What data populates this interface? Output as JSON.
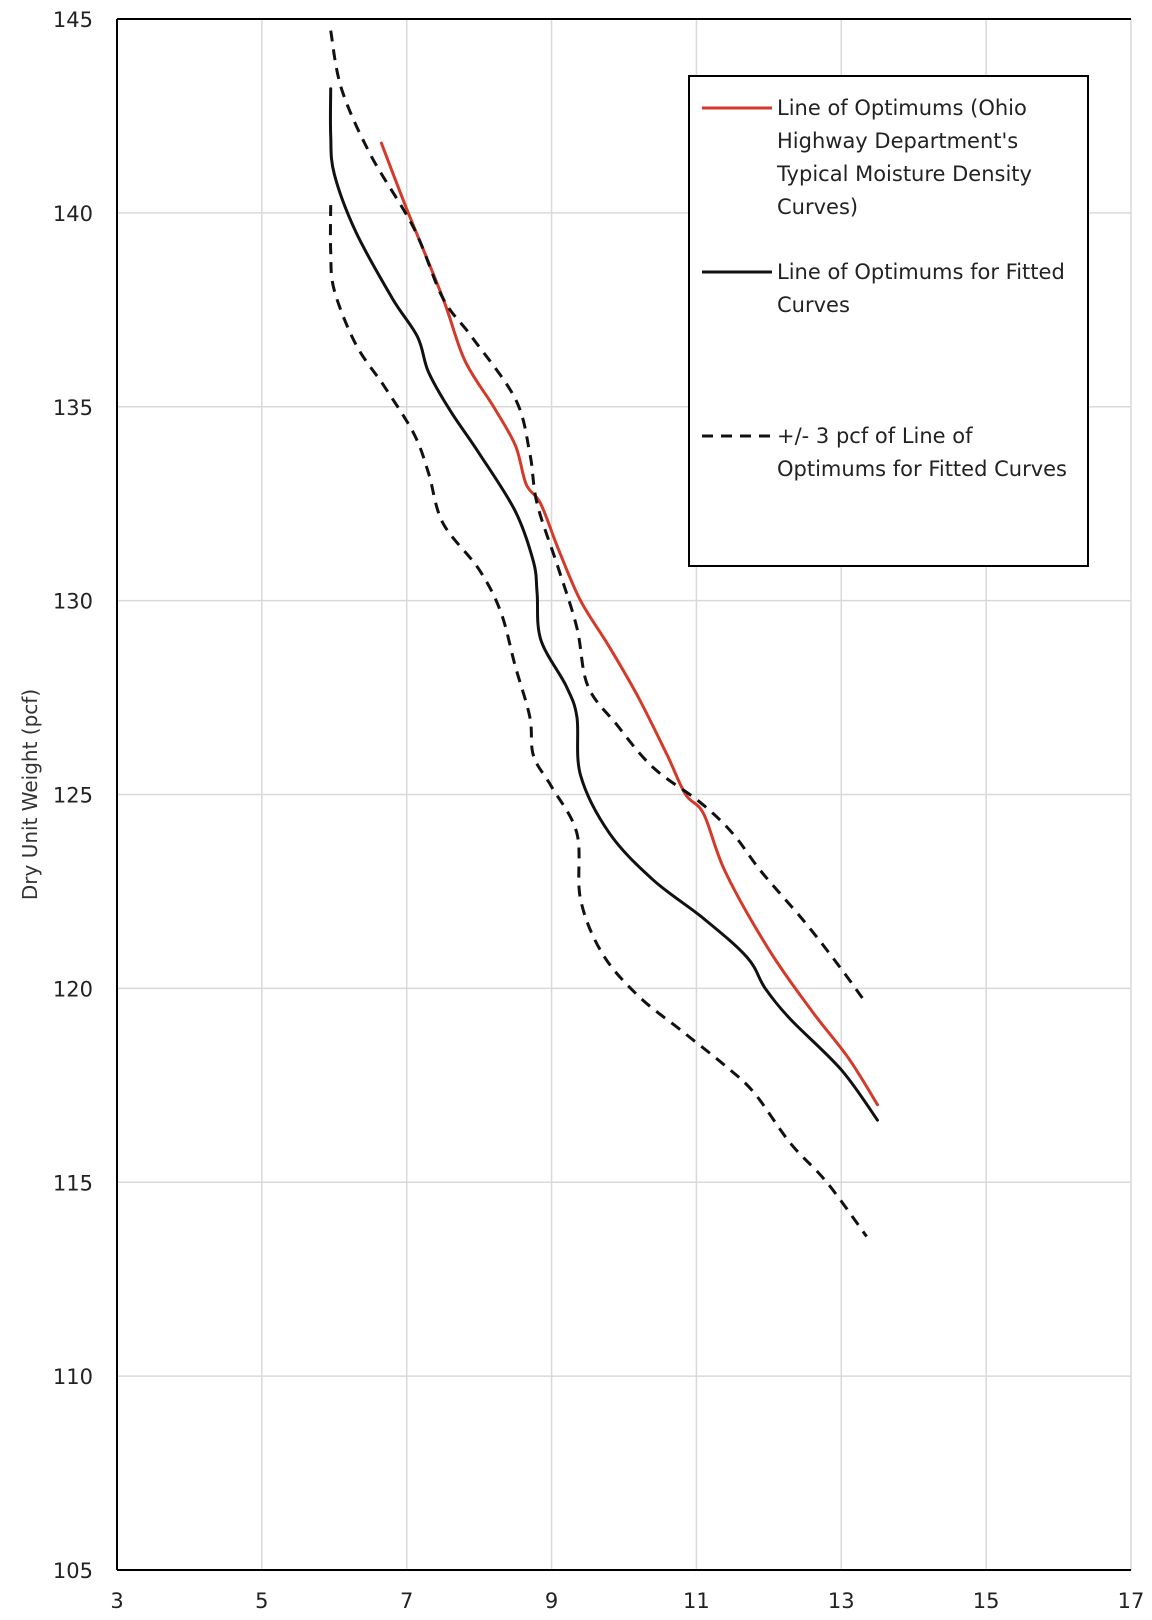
{
  "chart_data": {
    "type": "line",
    "title": "",
    "xlabel": "",
    "ylabel": "Dry Unit Weight (pcf)",
    "xlim": [
      3,
      17
    ],
    "ylim": [
      105,
      145
    ],
    "x_ticks": [
      "3",
      "5",
      "7",
      "9",
      "11",
      "13",
      "15",
      "17"
    ],
    "y_ticks": [
      "105",
      "110",
      "115",
      "120",
      "125",
      "130",
      "135",
      "140",
      "145"
    ],
    "x_tick_values": [
      3,
      5,
      7,
      9,
      11,
      13,
      15,
      17
    ],
    "y_tick_values": [
      105,
      110,
      115,
      120,
      125,
      130,
      135,
      140,
      145
    ],
    "grid": true,
    "legend_position": "top-right",
    "series": [
      {
        "name": "Line of Optimums (Ohio Highway Department's Typical Moisture Density Curves)",
        "legend_lines": [
          "Line of Optimums (Ohio",
          "Highway Department's",
          "Typical Moisture Density",
          "Curves)"
        ],
        "color": "#d43a2a",
        "style": "solid",
        "points": [
          [
            6.65,
            141.8
          ],
          [
            7.0,
            140.1
          ],
          [
            7.5,
            137.8
          ],
          [
            7.8,
            136.2
          ],
          [
            8.2,
            135.0
          ],
          [
            8.5,
            134.0
          ],
          [
            8.65,
            133.0
          ],
          [
            8.85,
            132.5
          ],
          [
            9.1,
            131.3
          ],
          [
            9.4,
            130.0
          ],
          [
            9.8,
            128.8
          ],
          [
            10.2,
            127.5
          ],
          [
            10.6,
            126.0
          ],
          [
            10.85,
            125.0
          ],
          [
            11.1,
            124.5
          ],
          [
            11.4,
            123.0
          ],
          [
            12.0,
            121.0
          ],
          [
            12.6,
            119.4
          ],
          [
            13.1,
            118.2
          ],
          [
            13.5,
            117.0
          ]
        ]
      },
      {
        "name": "Line of Optimums for Fitted Curves",
        "legend_lines": [
          "Line of Optimums for Fitted",
          "Curves"
        ],
        "color": "#111111",
        "style": "solid",
        "points": [
          [
            5.95,
            143.2
          ],
          [
            5.95,
            142.0
          ],
          [
            6.0,
            141.0
          ],
          [
            6.3,
            139.5
          ],
          [
            6.8,
            137.8
          ],
          [
            7.15,
            136.8
          ],
          [
            7.3,
            135.9
          ],
          [
            7.6,
            134.9
          ],
          [
            8.0,
            133.8
          ],
          [
            8.5,
            132.3
          ],
          [
            8.75,
            131.0
          ],
          [
            8.8,
            130.2
          ],
          [
            8.85,
            129.0
          ],
          [
            9.2,
            127.8
          ],
          [
            9.35,
            127.0
          ],
          [
            9.4,
            125.5
          ],
          [
            9.8,
            124.0
          ],
          [
            10.4,
            122.8
          ],
          [
            11.1,
            121.8
          ],
          [
            11.7,
            120.8
          ],
          [
            11.95,
            120.0
          ],
          [
            12.3,
            119.2
          ],
          [
            13.0,
            117.9
          ],
          [
            13.5,
            116.6
          ]
        ]
      },
      {
        "name": "+/- 3 pcf of Line of Optimums for Fitted Curves",
        "legend_lines": [
          "+/- 3 pcf of Line of",
          "Optimums for Fitted Curves"
        ],
        "color": "#111111",
        "style": "dashed",
        "points": [
          [
            5.95,
            144.7
          ],
          [
            6.1,
            143.2
          ],
          [
            6.5,
            141.5
          ],
          [
            7.1,
            139.6
          ],
          [
            7.5,
            137.8
          ],
          [
            7.9,
            136.8
          ],
          [
            8.5,
            135.2
          ],
          [
            8.7,
            133.8
          ],
          [
            8.8,
            132.5
          ],
          [
            9.1,
            130.8
          ],
          [
            9.35,
            129.3
          ],
          [
            9.5,
            127.8
          ],
          [
            9.9,
            126.8
          ],
          [
            10.4,
            125.7
          ],
          [
            11.05,
            124.8
          ],
          [
            11.5,
            124.0
          ],
          [
            11.9,
            123.0
          ],
          [
            12.5,
            121.7
          ],
          [
            13.0,
            120.5
          ],
          [
            13.35,
            119.6
          ]
        ]
      },
      {
        "name": "",
        "color": "#111111",
        "style": "dashed",
        "points": [
          [
            5.95,
            140.2
          ],
          [
            5.95,
            139.0
          ],
          [
            6.0,
            138.0
          ],
          [
            6.3,
            136.6
          ],
          [
            6.7,
            135.5
          ],
          [
            7.1,
            134.3
          ],
          [
            7.3,
            133.3
          ],
          [
            7.5,
            132.0
          ],
          [
            8.0,
            130.8
          ],
          [
            8.3,
            129.7
          ],
          [
            8.5,
            128.3
          ],
          [
            8.7,
            127.0
          ],
          [
            8.75,
            126.0
          ],
          [
            9.0,
            125.2
          ],
          [
            9.35,
            124.0
          ],
          [
            9.4,
            122.3
          ],
          [
            9.7,
            120.9
          ],
          [
            10.2,
            119.8
          ],
          [
            10.8,
            118.9
          ],
          [
            11.4,
            118.0
          ],
          [
            11.8,
            117.3
          ],
          [
            12.3,
            116.0
          ],
          [
            12.8,
            115.0
          ],
          [
            13.35,
            113.6
          ]
        ]
      }
    ]
  }
}
